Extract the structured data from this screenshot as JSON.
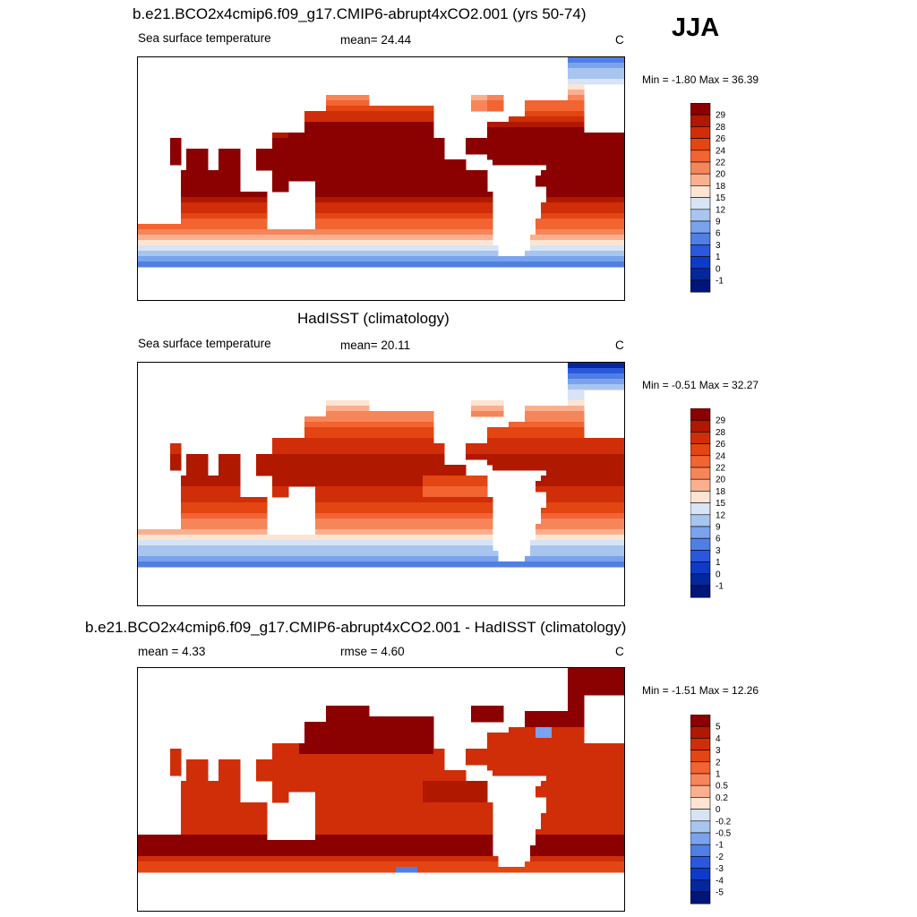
{
  "season": "JJA",
  "chart_data": [
    {
      "type": "heatmap",
      "title": "b.e21.BCO2x4cmip6.f09_g17.CMIP6-abrupt4xCO2.001 (yrs 50-74)",
      "left_label": "Sea surface temperature",
      "center_label": "mean=  24.44",
      "mean": 24.44,
      "units": "C",
      "minmax_label": "Min =  -1.80 Max =  36.39",
      "min": -1.8,
      "max": 36.39,
      "colorbar_levels": [
        "29",
        "28",
        "26",
        "24",
        "22",
        "20",
        "18",
        "15",
        "12",
        "9",
        "6",
        "3",
        "1",
        "0",
        "-1"
      ],
      "colorbar_colors": [
        "#8b0000",
        "#b01800",
        "#d02e08",
        "#e34513",
        "#f26431",
        "#f7855a",
        "#fab08f",
        "#fde4d3",
        "#d6e4f5",
        "#a8c5ef",
        "#7ba2ec",
        "#4f7fe4",
        "#2958dc",
        "#0d3ac7",
        "#04279e",
        "#00157a"
      ],
      "field": "sst_model"
    },
    {
      "type": "heatmap",
      "title": "HadISST (climatology)",
      "left_label": "Sea surface temperature",
      "center_label": "mean=  20.11",
      "mean": 20.11,
      "units": "C",
      "minmax_label": "Min =  -0.51 Max =  32.27",
      "min": -0.51,
      "max": 32.27,
      "colorbar_levels": [
        "29",
        "28",
        "26",
        "24",
        "22",
        "20",
        "18",
        "15",
        "12",
        "9",
        "6",
        "3",
        "1",
        "0",
        "-1"
      ],
      "colorbar_colors": [
        "#8b0000",
        "#b01800",
        "#d02e08",
        "#e34513",
        "#f26431",
        "#f7855a",
        "#fab08f",
        "#fde4d3",
        "#d6e4f5",
        "#a8c5ef",
        "#7ba2ec",
        "#4f7fe4",
        "#2958dc",
        "#0d3ac7",
        "#04279e",
        "#00157a"
      ],
      "field": "sst_obs"
    },
    {
      "type": "heatmap",
      "title": "b.e21.BCO2x4cmip6.f09_g17.CMIP6-abrupt4xCO2.001 - HadISST (climatology)",
      "left_label": "mean =   4.33",
      "center_label": "rmse =   4.60",
      "mean": 4.33,
      "rmse": 4.6,
      "units": "C",
      "minmax_label": "Min =  -1.51 Max =  12.26",
      "min": -1.51,
      "max": 12.26,
      "colorbar_levels": [
        "5",
        "4",
        "3",
        "2",
        "1",
        "0.5",
        "0.2",
        "0",
        "-0.2",
        "-0.5",
        "-1",
        "-2",
        "-3",
        "-4",
        "-5"
      ],
      "colorbar_colors": [
        "#8b0000",
        "#b01800",
        "#d02e08",
        "#e34513",
        "#f26431",
        "#f7855a",
        "#fab08f",
        "#fde4d3",
        "#d6e4f5",
        "#a8c5ef",
        "#7ba2ec",
        "#4f7fe4",
        "#2958dc",
        "#0d3ac7",
        "#04279e",
        "#00157a"
      ],
      "field": "sst_diff"
    }
  ]
}
